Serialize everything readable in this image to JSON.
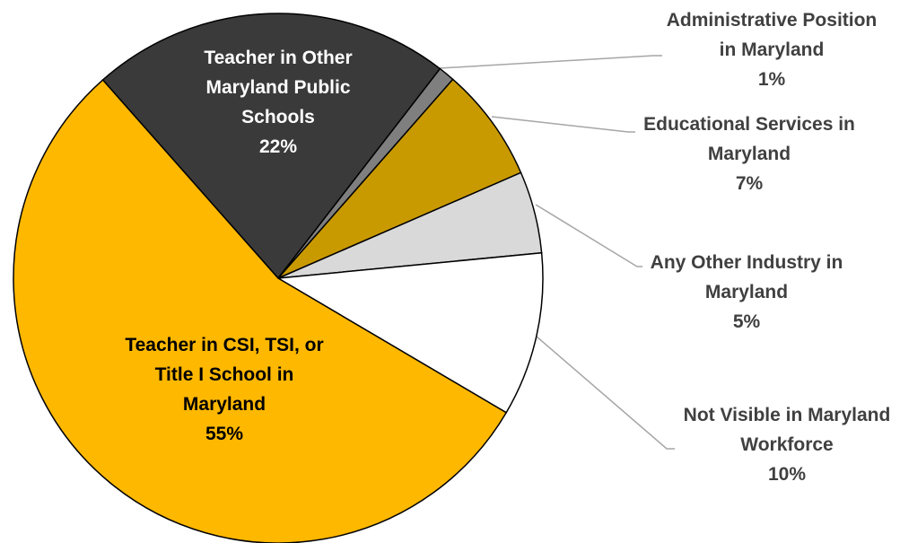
{
  "chart_data": {
    "type": "pie",
    "categories": [
      "Teacher in Other Maryland Public Schools",
      "Administrative Position in Maryland",
      "Educational Services in Maryland",
      "Any Other Industry in Maryland",
      "Not Visible in Maryland Workforce",
      "Teacher in CSI, TSI, or Title I School in Maryland"
    ],
    "values": [
      22,
      1,
      7,
      5,
      10,
      55
    ],
    "value_labels": [
      "22%",
      "1%",
      "7%",
      "5%",
      "10%",
      "55%"
    ],
    "colors": [
      "#3a3a3a",
      "#7f7f7f",
      "#c99a00",
      "#d9d9d9",
      "#ffffff",
      "#ffb800"
    ]
  }
}
